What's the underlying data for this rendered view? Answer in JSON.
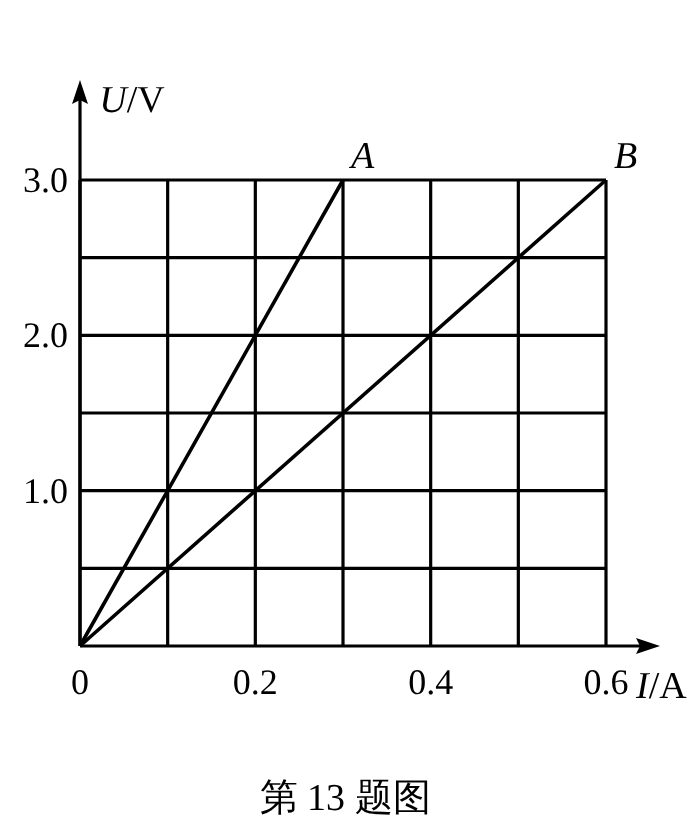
{
  "chart_data": {
    "type": "line",
    "xlabel": "*I*/A",
    "ylabel": "*U*/V",
    "grid": true,
    "marker": "none",
    "line_style": "solid",
    "xlim": [
      0,
      0.6
    ],
    "ylim": [
      0,
      3.0
    ],
    "xticks": [
      {
        "value": 0,
        "label": "0"
      },
      {
        "value": 0.1,
        "label": null
      },
      0.2,
      {
        "value": 0.3,
        "label": null
      },
      0.4,
      {
        "value": 0.5,
        "label": null
      },
      0.6
    ],
    "yticks": [
      {
        "value": 0.5,
        "label": null
      },
      {
        "value": 1.0,
        "label": "1.0"
      },
      {
        "value": 1.5,
        "label": null
      },
      {
        "value": 2.0,
        "label": "2.0"
      },
      {
        "value": 2.5,
        "label": null
      },
      {
        "value": 3.0,
        "label": "3.0"
      }
    ],
    "series": [
      {
        "name": "*A*",
        "color": "#000000",
        "x": [
          0,
          0.3
        ],
        "values": [
          0,
          3.0
        ]
      },
      {
        "name": "*B*",
        "color": "#000000",
        "x": [
          0,
          0.6
        ],
        "values": [
          0,
          3.0
        ]
      }
    ],
    "annotations": [
      "第 13 题图"
    ]
  }
}
